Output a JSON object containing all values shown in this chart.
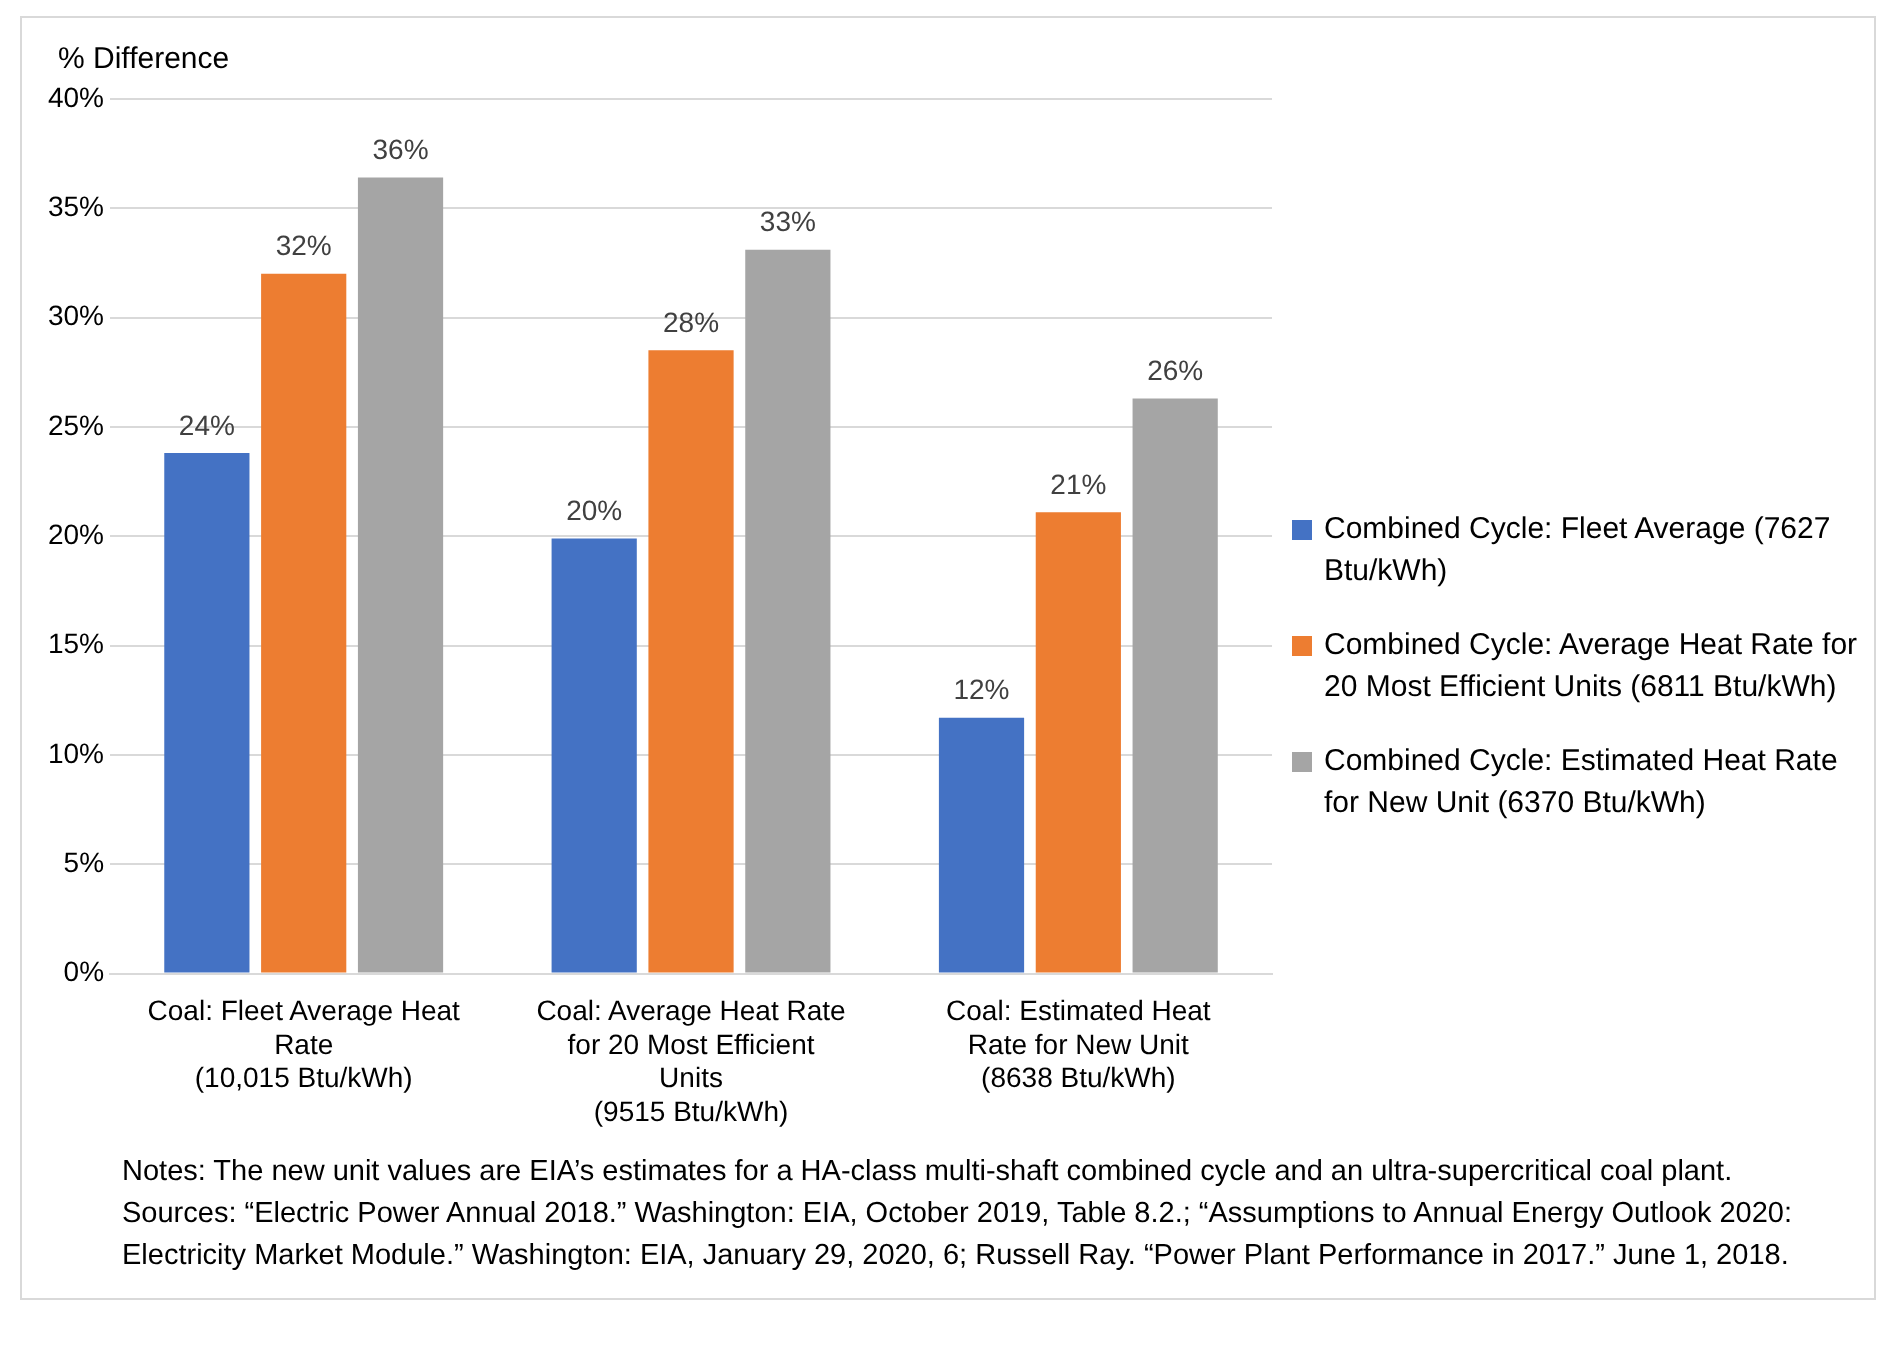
{
  "chart_data": {
    "type": "bar",
    "ylabel": "% Difference",
    "categories": [
      "Coal: Fleet Average Heat Rate (10,015 Btu/kWh)",
      "Coal: Average Heat Rate for 20 Most Efficient Units (9515 Btu/kWh)",
      "Coal: Estimated Heat Rate for New Unit (8638 Btu/kWh)"
    ],
    "series": [
      {
        "name": "Combined Cycle: Fleet Average (7627 Btu/kWh)",
        "color": "#4472c4",
        "values": [
          23.8,
          19.9,
          11.7
        ],
        "value_labels": [
          "24%",
          "20%",
          "12%"
        ]
      },
      {
        "name": "Combined Cycle: Average Heat Rate for 20 Most Efficient Units (6811 Btu/kWh)",
        "color": "#ed7d31",
        "values": [
          32.0,
          28.5,
          21.1
        ],
        "value_labels": [
          "32%",
          "28%",
          "21%"
        ]
      },
      {
        "name": "Combined Cycle: Estimated Heat Rate for New Unit (6370 Btu/kWh)",
        "color": "#a5a5a5",
        "values": [
          36.4,
          33.1,
          26.3
        ],
        "value_labels": [
          "36%",
          "33%",
          "26%"
        ]
      }
    ],
    "ylim": [
      0,
      40
    ],
    "yticks": [
      {
        "value": 0,
        "label": "0%"
      },
      {
        "value": 5,
        "label": "5%"
      },
      {
        "value": 10,
        "label": "10%"
      },
      {
        "value": 15,
        "label": "15%"
      },
      {
        "value": 20,
        "label": "20%"
      },
      {
        "value": 25,
        "label": "25%"
      },
      {
        "value": 30,
        "label": "30%"
      },
      {
        "value": 35,
        "label": "35%"
      },
      {
        "value": 40,
        "label": "40%"
      }
    ],
    "grid": "y",
    "legend": "right",
    "annotations": [
      "Notes: The new unit values are EIA’s estimates for a HA-class multi-shaft combined cycle and an ultra-supercritical coal plant.  Sources: “Electric Power Annual 2018.” Washington: EIA, October 2019, Table 8.2.; “Assumptions to Annual Energy Outlook 2020: Electricity Market Module.” Washington: EIA, January 29, 2020, 6; Russell Ray. “Power Plant Performance in 2017.” June 1, 2018."
    ]
  }
}
